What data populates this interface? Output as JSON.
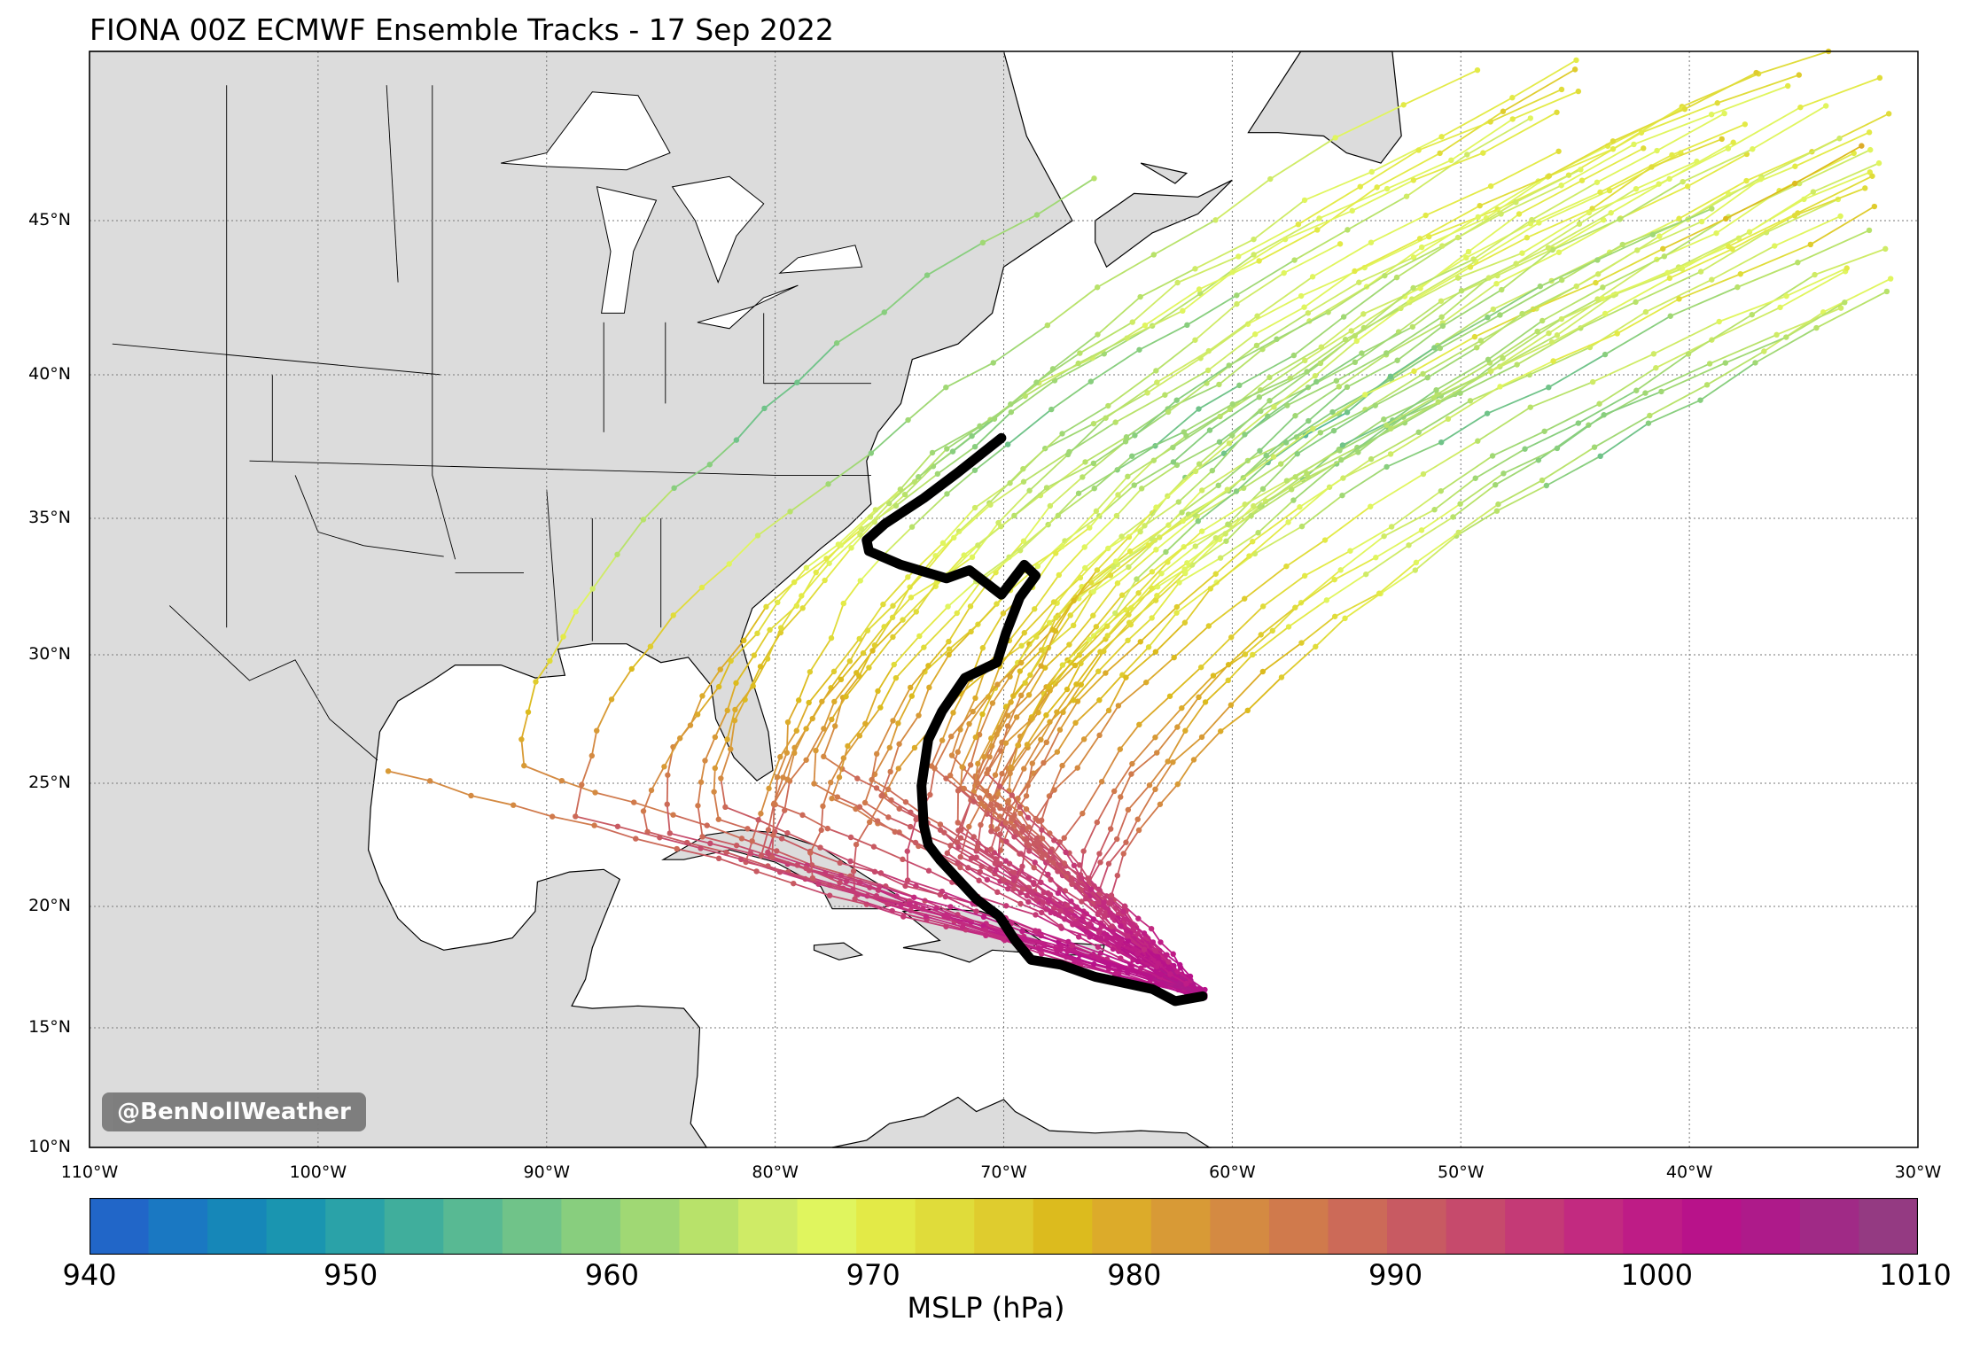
{
  "title": "FIONA 00Z ECMWF Ensemble Tracks - 17 Sep 2022",
  "credit": "@BenNollWeather",
  "map": {
    "lon_range": [
      -110,
      -30
    ],
    "lat_range": [
      10,
      50
    ],
    "lat_labels": [
      "45°N",
      "40°N",
      "35°N",
      "30°N",
      "25°N",
      "20°N",
      "15°N",
      "10°N"
    ],
    "lat_values": [
      45,
      40,
      35,
      30,
      25,
      20,
      15,
      10
    ],
    "lon_labels": [
      "110°W",
      "100°W",
      "90°W",
      "80°W",
      "70°W",
      "60°W",
      "50°W",
      "40°W",
      "30°W"
    ],
    "lon_values": [
      -110,
      -100,
      -90,
      -80,
      -70,
      -60,
      -50,
      -40,
      -30
    ],
    "land_color": "#dcdcdc",
    "ocean_color": "#ffffff",
    "observed_track_color": "#000000"
  },
  "colorbar": {
    "label": "MSLP (hPa)",
    "min": 940,
    "max": 1010,
    "ticks": [
      "940",
      "950",
      "960",
      "970",
      "980",
      "990",
      "1000",
      "1010"
    ],
    "colors": [
      "#2166c8",
      "#1a78c2",
      "#1687b8",
      "#1a95b0",
      "#2aa2a8",
      "#40ae9c",
      "#58b993",
      "#70c389",
      "#88ce7e",
      "#a0d874",
      "#b8e26a",
      "#cfeb66",
      "#e0f55e",
      "#e3ea47",
      "#e0dc3a",
      "#dfcc2e",
      "#dcbb1e",
      "#dcab2a",
      "#d89a36",
      "#d48a42",
      "#d07a4c",
      "#cc6a58",
      "#c85a62",
      "#c64a6c",
      "#c43a76",
      "#c22a80",
      "#be1c86",
      "#b8128a",
      "#ae1a8a",
      "#a02a86",
      "#943a82"
    ]
  },
  "observed_track": {
    "lon": [
      -61.3,
      -62.5,
      -63.5,
      -65,
      -66,
      -67.5,
      -68.8,
      -69.5,
      -70.2,
      -71.2,
      -72,
      -72.8,
      -73.3,
      -73.5,
      -73.6,
      -73.3,
      -72.7,
      -71.7,
      -70.3,
      -69.9,
      -69.3,
      -68.6,
      -69.1,
      -70.1,
      -71.5,
      -72.5,
      -74.5,
      -75.9,
      -76,
      -75.2,
      -73.5,
      -72,
      -70.1
    ],
    "lat": [
      16.3,
      16.1,
      16.6,
      16.9,
      17.1,
      17.6,
      17.8,
      18.6,
      19.6,
      20.3,
      21.1,
      21.9,
      22.5,
      23.3,
      24.9,
      26.7,
      27.8,
      29.1,
      29.7,
      30.8,
      32.1,
      32.9,
      33.3,
      32.2,
      33.1,
      32.8,
      33.3,
      33.8,
      34.2,
      34.8,
      35.7,
      36.6,
      37.8
    ]
  }
}
